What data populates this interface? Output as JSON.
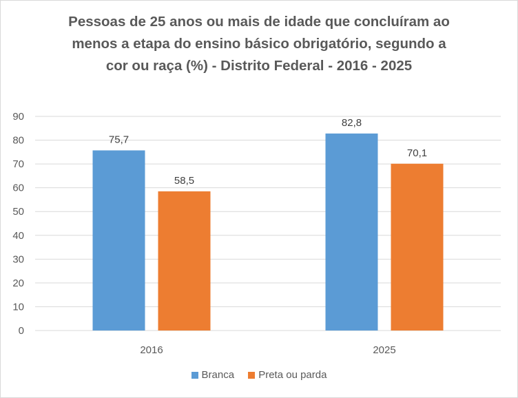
{
  "chart_data": {
    "type": "bar",
    "title_lines": [
      "Pessoas de 25 anos ou mais de idade que concluíram ao",
      "menos a etapa do ensino básico obrigatório, segundo a",
      "cor ou raça (%) - Distrito Federal - 2016 - 2025"
    ],
    "categories": [
      "2016",
      "2025"
    ],
    "series": [
      {
        "name": "Branca",
        "color": "#5B9BD5",
        "values": [
          75.7,
          82.8
        ],
        "labels": [
          "75,7",
          "82,8"
        ]
      },
      {
        "name": "Preta ou parda",
        "color": "#ED7D31",
        "values": [
          58.5,
          70.1
        ],
        "labels": [
          "58,5",
          "70,1"
        ]
      }
    ],
    "ylim": [
      0,
      90
    ],
    "yticks": [
      "0",
      "10",
      "20",
      "30",
      "40",
      "50",
      "60",
      "70",
      "80",
      "90"
    ],
    "grid": true,
    "legend_position": "bottom"
  }
}
